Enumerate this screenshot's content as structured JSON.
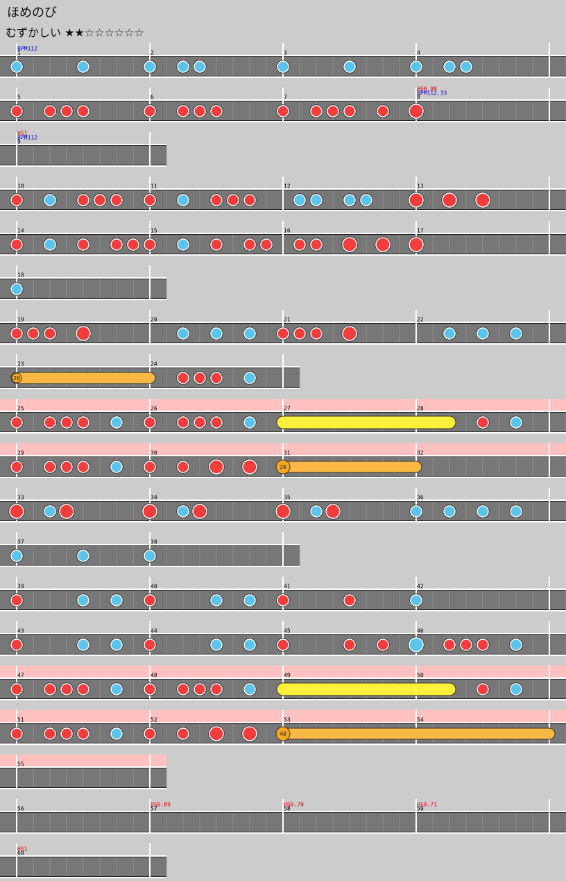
{
  "header": {
    "title": "ほめのび",
    "difficulty": "むずかしい ★★☆☆☆☆☆☆"
  },
  "rows": [
    {
      "measures": [
        1,
        2,
        3,
        4
      ],
      "labels": [
        {
          "at": 0,
          "lines": [
            "BPM112"
          ]
        }
      ],
      "notes": [
        [
          0,
          "k"
        ],
        [
          4,
          "k"
        ],
        [
          8,
          "k"
        ],
        [
          10,
          "k"
        ],
        [
          11,
          "k"
        ],
        [
          16,
          "k"
        ],
        [
          20,
          "k"
        ],
        [
          24,
          "k"
        ],
        [
          26,
          "k"
        ],
        [
          27,
          "k"
        ]
      ]
    },
    {
      "measures": [
        5,
        6,
        7,
        8
      ],
      "labels": [
        {
          "at": 3,
          "lines": [
            "HS0.99",
            "BPM112.33"
          ]
        }
      ],
      "notes": [
        [
          0,
          "d"
        ],
        [
          2,
          "d"
        ],
        [
          3,
          "d"
        ],
        [
          4,
          "d"
        ],
        [
          8,
          "d"
        ],
        [
          10,
          "d"
        ],
        [
          11,
          "d"
        ],
        [
          12,
          "d"
        ],
        [
          16,
          "d"
        ],
        [
          18,
          "d"
        ],
        [
          19,
          "d"
        ],
        [
          20,
          "d"
        ],
        [
          22,
          "d"
        ],
        [
          24,
          "D"
        ]
      ]
    },
    {
      "measures": [
        9
      ],
      "labels": [
        {
          "at": 0,
          "lines": [
            "HS1",
            "BPM112"
          ]
        }
      ],
      "notes": []
    },
    {
      "measures": [
        10,
        11,
        12,
        13
      ],
      "notes": [
        [
          0,
          "d"
        ],
        [
          2,
          "k"
        ],
        [
          4,
          "d"
        ],
        [
          5,
          "d"
        ],
        [
          6,
          "d"
        ],
        [
          8,
          "d"
        ],
        [
          10,
          "k"
        ],
        [
          12,
          "d"
        ],
        [
          13,
          "d"
        ],
        [
          14,
          "d"
        ],
        [
          17,
          "k"
        ],
        [
          18,
          "k"
        ],
        [
          20,
          "k"
        ],
        [
          21,
          "k"
        ],
        [
          24,
          "D"
        ],
        [
          26,
          "D"
        ],
        [
          28,
          "D"
        ]
      ]
    },
    {
      "measures": [
        14,
        15,
        16,
        17
      ],
      "notes": [
        [
          0,
          "d"
        ],
        [
          2,
          "k"
        ],
        [
          4,
          "d"
        ],
        [
          6,
          "d"
        ],
        [
          7,
          "d"
        ],
        [
          8,
          "d"
        ],
        [
          10,
          "k"
        ],
        [
          12,
          "d"
        ],
        [
          14,
          "d"
        ],
        [
          15,
          "d"
        ],
        [
          17,
          "d"
        ],
        [
          18,
          "d"
        ],
        [
          20,
          "D"
        ],
        [
          22,
          "D"
        ],
        [
          24,
          "D"
        ]
      ]
    },
    {
      "measures": [
        18
      ],
      "notes": [
        [
          0,
          "k"
        ]
      ]
    },
    {
      "measures": [
        19,
        20,
        21,
        22
      ],
      "notes": [
        [
          0,
          "d"
        ],
        [
          1,
          "d"
        ],
        [
          2,
          "d"
        ],
        [
          4,
          "D"
        ],
        [
          10,
          "k"
        ],
        [
          12,
          "k"
        ],
        [
          14,
          "k"
        ],
        [
          16,
          "d"
        ],
        [
          17,
          "d"
        ],
        [
          18,
          "d"
        ],
        [
          20,
          "D"
        ],
        [
          26,
          "k"
        ],
        [
          28,
          "k"
        ],
        [
          30,
          "k"
        ]
      ]
    },
    {
      "measures": [
        23,
        24
      ],
      "rolls": [
        {
          "from": 0,
          "to": 8,
          "kind": "balloon",
          "count": 20
        }
      ],
      "notes": [
        [
          10,
          "d"
        ],
        [
          11,
          "d"
        ],
        [
          12,
          "d"
        ],
        [
          14,
          "k"
        ]
      ]
    },
    {
      "measures": [
        25,
        26,
        27,
        28
      ],
      "pink": true,
      "rolls": [
        {
          "from": 16,
          "to": 26,
          "kind": "roll"
        }
      ],
      "notes": [
        [
          0,
          "d"
        ],
        [
          2,
          "d"
        ],
        [
          3,
          "d"
        ],
        [
          4,
          "d"
        ],
        [
          6,
          "k"
        ],
        [
          8,
          "d"
        ],
        [
          10,
          "d"
        ],
        [
          11,
          "d"
        ],
        [
          12,
          "d"
        ],
        [
          14,
          "k"
        ],
        [
          28,
          "d"
        ],
        [
          30,
          "k"
        ]
      ]
    },
    {
      "measures": [
        29,
        30,
        31,
        32
      ],
      "pink": true,
      "rolls": [
        {
          "from": 16,
          "to": 24,
          "kind": "big-balloon",
          "count": 20
        }
      ],
      "notes": [
        [
          0,
          "d"
        ],
        [
          2,
          "d"
        ],
        [
          3,
          "d"
        ],
        [
          4,
          "d"
        ],
        [
          6,
          "k"
        ],
        [
          8,
          "d"
        ],
        [
          10,
          "d"
        ],
        [
          12,
          "D"
        ],
        [
          14,
          "D"
        ]
      ]
    },
    {
      "measures": [
        33,
        34,
        35,
        36
      ],
      "notes": [
        [
          0,
          "D"
        ],
        [
          2,
          "k"
        ],
        [
          3,
          "D"
        ],
        [
          8,
          "D"
        ],
        [
          10,
          "k"
        ],
        [
          11,
          "D"
        ],
        [
          16,
          "D"
        ],
        [
          18,
          "k"
        ],
        [
          19,
          "D"
        ],
        [
          24,
          "k"
        ],
        [
          26,
          "k"
        ],
        [
          28,
          "k"
        ],
        [
          30,
          "k"
        ]
      ]
    },
    {
      "measures": [
        37,
        38
      ],
      "notes": [
        [
          0,
          "k"
        ],
        [
          4,
          "k"
        ],
        [
          8,
          "k"
        ]
      ]
    },
    {
      "measures": [
        39,
        40,
        41,
        42
      ],
      "notes": [
        [
          0,
          "d"
        ],
        [
          4,
          "k"
        ],
        [
          6,
          "k"
        ],
        [
          8,
          "d"
        ],
        [
          12,
          "k"
        ],
        [
          14,
          "k"
        ],
        [
          16,
          "d"
        ],
        [
          20,
          "d"
        ],
        [
          24,
          "k"
        ]
      ]
    },
    {
      "measures": [
        43,
        44,
        45,
        46
      ],
      "notes": [
        [
          0,
          "d"
        ],
        [
          4,
          "k"
        ],
        [
          6,
          "k"
        ],
        [
          8,
          "d"
        ],
        [
          12,
          "k"
        ],
        [
          14,
          "k"
        ],
        [
          16,
          "d"
        ],
        [
          20,
          "d"
        ],
        [
          22,
          "d"
        ],
        [
          24,
          "K"
        ],
        [
          26,
          "d"
        ],
        [
          27,
          "d"
        ],
        [
          28,
          "d"
        ],
        [
          30,
          "k"
        ]
      ]
    },
    {
      "measures": [
        47,
        48,
        49,
        50
      ],
      "pink": true,
      "rolls": [
        {
          "from": 16,
          "to": 26,
          "kind": "roll"
        }
      ],
      "notes": [
        [
          0,
          "d"
        ],
        [
          2,
          "d"
        ],
        [
          3,
          "d"
        ],
        [
          4,
          "d"
        ],
        [
          6,
          "k"
        ],
        [
          8,
          "d"
        ],
        [
          10,
          "d"
        ],
        [
          11,
          "d"
        ],
        [
          12,
          "d"
        ],
        [
          14,
          "k"
        ],
        [
          28,
          "d"
        ],
        [
          30,
          "k"
        ]
      ]
    },
    {
      "measures": [
        51,
        52,
        53,
        54
      ],
      "pink": true,
      "rolls": [
        {
          "from": 16,
          "to": 32,
          "kind": "big-balloon",
          "count": 40
        }
      ],
      "notes": [
        [
          0,
          "d"
        ],
        [
          2,
          "d"
        ],
        [
          3,
          "d"
        ],
        [
          4,
          "d"
        ],
        [
          6,
          "k"
        ],
        [
          8,
          "d"
        ],
        [
          10,
          "d"
        ],
        [
          12,
          "D"
        ],
        [
          14,
          "D"
        ]
      ]
    },
    {
      "measures": [
        55
      ],
      "pink": true,
      "notes": []
    },
    {
      "measures": [
        56,
        57,
        58,
        59
      ],
      "labels": [
        {
          "at": 1,
          "lines": [
            "HS0.89"
          ]
        },
        {
          "at": 2,
          "lines": [
            "HS0.79"
          ]
        },
        {
          "at": 3,
          "lines": [
            "HS0.71"
          ]
        }
      ],
      "notes": []
    },
    {
      "measures": [
        60
      ],
      "labels": [
        {
          "at": 0,
          "lines": [
            "HS1"
          ]
        }
      ],
      "notes": []
    }
  ]
}
